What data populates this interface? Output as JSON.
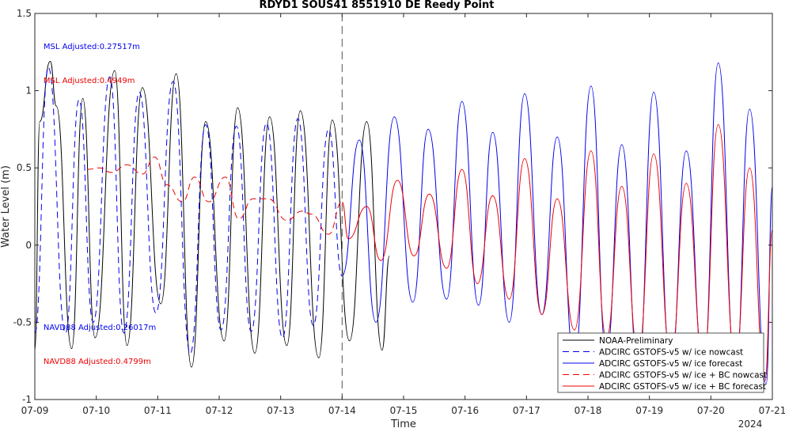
{
  "chart_data": {
    "type": "line",
    "title": "RDYD1 SOUS41 8551910 DE Reedy Point",
    "xlabel": "Time",
    "ylabel": "Water Level (m)",
    "year_label": "2024",
    "xlim": [
      9,
      21
    ],
    "ylim": [
      -1,
      1.5
    ],
    "x_ticks": [
      9,
      10,
      11,
      12,
      13,
      14,
      15,
      16,
      17,
      18,
      19,
      20,
      21
    ],
    "x_tick_labels": [
      "07-09",
      "07-10",
      "07-11",
      "07-12",
      "07-13",
      "07-14",
      "07-15",
      "07-16",
      "07-17",
      "07-18",
      "07-19",
      "07-20",
      "07-21"
    ],
    "y_ticks": [
      -1,
      -0.5,
      0,
      0.5,
      1,
      1.5
    ],
    "y_tick_labels": [
      "-1",
      "-0.5",
      "0",
      "0.5",
      "1",
      "1.5"
    ],
    "nowcast_boundary_x": 14,
    "annotations": [
      {
        "text": "MSL Adjusted:0.27517m",
        "color": "#0000ee",
        "x": 9.14,
        "y": 1.27
      },
      {
        "text": "MSL Adjusted:0.4949m",
        "color": "#ee0000",
        "x": 9.14,
        "y": 1.05
      },
      {
        "text": "NAVD88 Adjusted:0.26017m",
        "color": "#0000ee",
        "x": 9.14,
        "y": -0.55
      },
      {
        "text": "NAVD88 Adjusted:0.4799m",
        "color": "#ee0000",
        "x": 9.14,
        "y": -0.77
      }
    ],
    "legend_position": "bottom-right",
    "series": [
      {
        "name": "NOAA-Preliminary",
        "color": "#000000",
        "dash": "solid",
        "x": [
          9.0,
          9.08,
          9.25,
          9.35,
          9.6,
          9.78,
          9.98,
          10.3,
          10.5,
          10.75,
          11.05,
          11.3,
          11.55,
          11.78,
          12.08,
          12.3,
          12.58,
          12.82,
          13.1,
          13.32,
          13.62,
          13.84,
          14.12,
          14.4,
          14.65,
          14.77
        ],
        "y": [
          -0.68,
          0.8,
          1.19,
          0.9,
          -0.67,
          0.95,
          -0.6,
          1.13,
          -0.65,
          1.02,
          -0.38,
          1.11,
          -0.79,
          0.8,
          -0.62,
          0.89,
          -0.7,
          0.83,
          -0.65,
          0.87,
          -0.73,
          0.81,
          -0.62,
          0.8,
          -0.68,
          -0.07
        ]
      },
      {
        "name": "ADCIRC GSTOFS-v5 w/ ice nowcast",
        "color": "#0000ee",
        "dash": "dashed",
        "x": [
          9.0,
          9.22,
          9.5,
          9.72,
          9.95,
          10.22,
          10.45,
          10.7,
          10.97,
          11.25,
          11.53,
          11.78,
          12.03,
          12.28,
          12.52,
          12.77,
          13.03,
          13.28,
          13.53,
          13.78,
          14.0
        ],
        "y": [
          -0.57,
          1.15,
          -0.57,
          0.94,
          -0.5,
          1.09,
          -0.57,
          0.99,
          -0.44,
          1.06,
          -0.7,
          0.78,
          -0.55,
          0.77,
          -0.56,
          0.79,
          -0.6,
          0.82,
          -0.52,
          0.75,
          -0.2
        ]
      },
      {
        "name": "ADCIRC GSTOFS-v5 w/ ice forecast",
        "color": "#0000ee",
        "dash": "solid",
        "x": [
          14.0,
          14.28,
          14.55,
          14.85,
          15.15,
          15.4,
          15.7,
          15.95,
          16.22,
          16.45,
          16.72,
          16.97,
          17.25,
          17.5,
          17.78,
          18.05,
          18.3,
          18.55,
          18.82,
          19.07,
          19.35,
          19.6,
          19.88,
          20.12,
          20.4,
          20.63,
          20.9,
          21.0
        ],
        "y": [
          -0.2,
          0.68,
          -0.5,
          0.83,
          -0.37,
          0.75,
          -0.35,
          0.93,
          -0.39,
          0.73,
          -0.5,
          0.98,
          -0.45,
          0.7,
          -0.75,
          1.03,
          -0.7,
          0.65,
          -0.8,
          0.99,
          -0.78,
          0.61,
          -0.8,
          1.18,
          -0.82,
          0.88,
          -0.9,
          0.38
        ]
      },
      {
        "name": "ADCIRC GSTOFS-v5 w/ ice + BC nowcast",
        "color": "#ee0000",
        "dash": "dashed",
        "x": [
          9.85,
          10.05,
          10.25,
          10.5,
          10.75,
          10.95,
          11.15,
          11.4,
          11.6,
          11.83,
          12.1,
          12.32,
          12.55,
          12.8,
          13.1,
          13.35,
          13.5,
          13.78,
          14.0
        ],
        "y": [
          0.49,
          0.5,
          0.47,
          0.52,
          0.46,
          0.57,
          0.39,
          0.28,
          0.44,
          0.28,
          0.44,
          0.17,
          0.3,
          0.3,
          0.16,
          0.22,
          0.2,
          0.07,
          0.28
        ]
      },
      {
        "name": "ADCIRC GSTOFS-v5 w/ ice + BC forecast",
        "color": "#ee0000",
        "dash": "solid",
        "x": [
          14.0,
          14.1,
          14.4,
          14.63,
          14.9,
          15.17,
          15.42,
          15.7,
          15.95,
          16.2,
          16.45,
          16.72,
          16.97,
          17.25,
          17.5,
          17.78,
          18.05,
          18.3,
          18.55,
          18.82,
          19.07,
          19.35,
          19.6,
          19.88,
          20.12,
          20.4,
          20.63,
          20.88,
          21.0
        ],
        "y": [
          0.28,
          0.04,
          0.25,
          -0.1,
          0.42,
          -0.07,
          0.33,
          -0.15,
          0.49,
          -0.25,
          0.32,
          -0.35,
          0.56,
          -0.45,
          0.3,
          -0.55,
          0.61,
          -0.6,
          0.38,
          -0.7,
          0.59,
          -0.72,
          0.4,
          -0.75,
          0.78,
          -0.75,
          0.5,
          -0.88,
          0.1
        ]
      }
    ]
  }
}
